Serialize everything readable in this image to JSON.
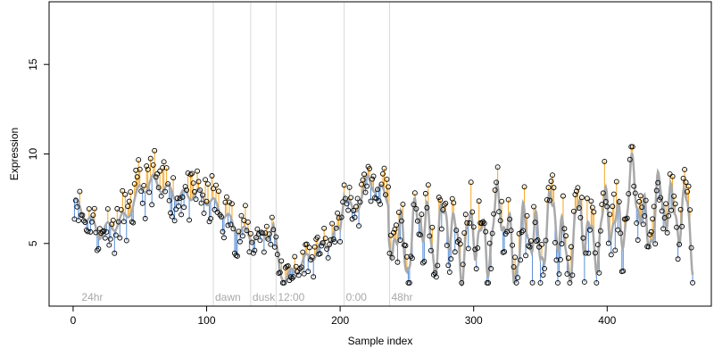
{
  "chart_data": {
    "type": "scatter",
    "title": "",
    "xlabel": "Sample index",
    "ylabel": "Expression",
    "xlim": [
      -18,
      478
    ],
    "ylim": [
      1.5,
      18.5
    ],
    "x_ticks": [
      0,
      100,
      200,
      300,
      400
    ],
    "y_ticks": [
      5,
      10,
      15
    ],
    "grid": false,
    "legend": "none",
    "colors": {
      "above_residual": "#f5a623",
      "below_residual": "#5b8ed6",
      "fitted_line": "#a9a9a9",
      "points_stroke": "#000000",
      "phase_line": "#d9d9d9",
      "phase_label": "#a8a8a8"
    },
    "phase_markers": [
      {
        "x": 5,
        "label": "24hr",
        "line": false
      },
      {
        "x": 105,
        "label": "dawn",
        "line": true
      },
      {
        "x": 133,
        "label": "dusk",
        "line": true
      },
      {
        "x": 152,
        "label": "12:00",
        "line": true
      },
      {
        "x": 203,
        "label": "0:00",
        "line": true
      },
      {
        "x": 237,
        "label": "48hr",
        "line": true
      }
    ],
    "fitted_series": {
      "name": "",
      "x": [
        1,
        10,
        20,
        30,
        40,
        50,
        60,
        70,
        80,
        90,
        100,
        110,
        120,
        130,
        140,
        150,
        155,
        160,
        170,
        180,
        190,
        200,
        203,
        210,
        220,
        230,
        236,
        237,
        240,
        250,
        260,
        270,
        280,
        290,
        300,
        310,
        320,
        330,
        340,
        350,
        360,
        370,
        380,
        390,
        400,
        410,
        420,
        430,
        440,
        450,
        460,
        464
      ],
      "y": [
        7.3,
        6.5,
        5.6,
        6.0,
        6.5,
        8.0,
        8.5,
        8.0,
        7.6,
        7.8,
        7.5,
        6.9,
        6.0,
        5.5,
        5.3,
        5.8,
        3.5,
        3.0,
        3.8,
        4.4,
        5.0,
        5.8,
        8.0,
        6.5,
        8.5,
        8.0,
        7.4,
        3.7,
        6.2,
        4.2,
        7.0,
        4.5,
        6.8,
        4.2,
        6.0,
        4.5,
        7.5,
        3.8,
        6.2,
        4.5,
        7.2,
        3.8,
        6.8,
        4.5,
        7.0,
        5.5,
        8.8,
        5.2,
        7.8,
        6.5,
        6.8,
        5.0
      ]
    },
    "points_sampling": {
      "x_start": 1,
      "x_end": 464,
      "residual_profile_x": [
        1,
        30,
        60,
        100,
        150,
        200,
        240,
        300,
        400,
        464
      ],
      "residual_profile_amplitude": [
        0.7,
        0.8,
        1.0,
        0.9,
        0.7,
        0.5,
        0.9,
        1.1,
        1.2,
        1.0
      ]
    }
  }
}
